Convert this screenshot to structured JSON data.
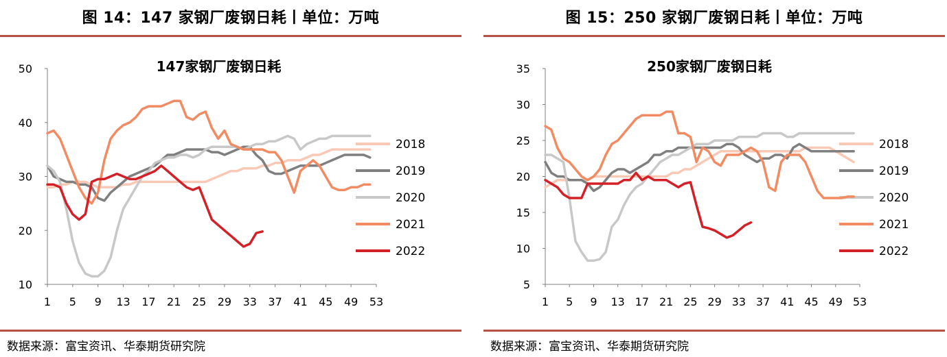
{
  "panels": [
    {
      "figure_title": "图 14：147 家钢厂废钢日耗丨单位：万吨",
      "source": "数据来源：富宝资讯、华泰期货研究院"
    },
    {
      "figure_title": "图 15：250 家钢厂废钢日耗丨单位：万吨",
      "source": "数据来源：富宝资讯、华泰期货研究院"
    }
  ],
  "colors": {
    "2018": "#f9c9b6",
    "2019": "#7f7f7f",
    "2020": "#c8c8c8",
    "2021": "#f28b62",
    "2022": "#d42027",
    "rule": "#b8504a"
  },
  "chart_data": [
    {
      "type": "line",
      "title": "147家钢厂废钢日耗",
      "xlabel": "",
      "ylabel": "",
      "x_ticks": [
        1,
        5,
        9,
        13,
        17,
        21,
        25,
        29,
        33,
        37,
        41,
        45,
        49,
        53
      ],
      "y_ticks": [
        10,
        20,
        30,
        40,
        50
      ],
      "xlim": [
        1,
        53
      ],
      "ylim": [
        10,
        50
      ],
      "grid": false,
      "legend_position": "right",
      "series": [
        {
          "name": "2018",
          "values": [
            28,
            28,
            28.5,
            28.5,
            29,
            29,
            29,
            28.5,
            28,
            28,
            28,
            28,
            28.5,
            28.5,
            29,
            29,
            29,
            29,
            29,
            29,
            29,
            29,
            29,
            29,
            29,
            29,
            29.5,
            30,
            30.5,
            31,
            31,
            31.5,
            31.5,
            31.5,
            32,
            32,
            32.5,
            32.5,
            33,
            33,
            33,
            33.5,
            34,
            34,
            34.5,
            35,
            35,
            35,
            35,
            35,
            35,
            35
          ]
        },
        {
          "name": "2019",
          "values": [
            32,
            30,
            29.5,
            29,
            29,
            28.5,
            28.5,
            28,
            26,
            25.5,
            27,
            28,
            29,
            30,
            30.5,
            31,
            31.5,
            32,
            33,
            34,
            34,
            34.5,
            35,
            35,
            35,
            35,
            34.5,
            34.5,
            34,
            34.5,
            35,
            35.5,
            35.5,
            34,
            33,
            31,
            30.5,
            30.5,
            31,
            31.5,
            32,
            32,
            32,
            32,
            32.5,
            33,
            33.5,
            34,
            34,
            34,
            34,
            33.5
          ]
        },
        {
          "name": "2020",
          "values": [
            32,
            31,
            29,
            24,
            18,
            14,
            12,
            11.5,
            11.5,
            12.5,
            15,
            20,
            24,
            26,
            28,
            30,
            31,
            32.5,
            33,
            33.5,
            33.5,
            34,
            34,
            33.5,
            34,
            35,
            35.5,
            35.5,
            35.5,
            35.5,
            35.5,
            35,
            35.5,
            36,
            36,
            36.5,
            36.5,
            37,
            37.5,
            37,
            35,
            36,
            36.5,
            37,
            37,
            37.5,
            37.5,
            37.5,
            37.5,
            37.5,
            37.5,
            37.5
          ]
        },
        {
          "name": "2021",
          "values": [
            38,
            38.5,
            37,
            34,
            31,
            28,
            26,
            25,
            27,
            33,
            37,
            38.5,
            39.5,
            40,
            41,
            42.5,
            43,
            43,
            43,
            43.5,
            44,
            44,
            41,
            40.5,
            41.5,
            42,
            39,
            37,
            38.5,
            36,
            35.5,
            35,
            35,
            35,
            35,
            34.5,
            34.5,
            33,
            30,
            27,
            31,
            32,
            33,
            32,
            30,
            28,
            27.5,
            27.5,
            28,
            28,
            28.5,
            28.5
          ]
        },
        {
          "name": "2022",
          "values": [
            28.5,
            28.5,
            28,
            25,
            23,
            22,
            23,
            29,
            29.5,
            29.5,
            30,
            30.5,
            30,
            29.5,
            29.5,
            30,
            30.5,
            31,
            32,
            31,
            30,
            29,
            28,
            27.5,
            28,
            25,
            22,
            21,
            20,
            19,
            18,
            17,
            17.5,
            19.5,
            19.8
          ]
        }
      ]
    },
    {
      "type": "line",
      "title": "250家钢厂废钢日耗",
      "xlabel": "",
      "ylabel": "",
      "x_ticks": [
        1,
        5,
        9,
        13,
        17,
        21,
        25,
        29,
        33,
        37,
        41,
        45,
        49,
        53
      ],
      "y_ticks": [
        5,
        10,
        15,
        20,
        25,
        30,
        35
      ],
      "xlim": [
        1,
        53
      ],
      "ylim": [
        5,
        35
      ],
      "grid": false,
      "legend_position": "right",
      "series": [
        {
          "name": "2018",
          "values": [
            18.5,
            19,
            19.5,
            19.5,
            19.5,
            19.5,
            19.5,
            19.5,
            20,
            20,
            20,
            20,
            20,
            20,
            20,
            20,
            20,
            20,
            20,
            20,
            20,
            20.5,
            20.5,
            21,
            21,
            21.5,
            22,
            22.5,
            23,
            23.5,
            23.5,
            23.5,
            23.5,
            23.5,
            23.5,
            23.5,
            23.5,
            23.5,
            23.5,
            23.5,
            23.5,
            23.5,
            23.5,
            24,
            24,
            24,
            24,
            24,
            23.5,
            23,
            22.5,
            22
          ]
        },
        {
          "name": "2019",
          "values": [
            22,
            20.5,
            20,
            20,
            19.5,
            19.5,
            19.5,
            19,
            18,
            18.5,
            19.5,
            20.5,
            21,
            21,
            20.5,
            21,
            21.5,
            22,
            23,
            23,
            23.5,
            23.5,
            24,
            24,
            24,
            24,
            24,
            24,
            24,
            24,
            24.5,
            24.5,
            24,
            23,
            22.5,
            22,
            22.5,
            22.5,
            23,
            23,
            22.5,
            24,
            24.5,
            24,
            23.5,
            23.5,
            23.5,
            23.5,
            23.5,
            23.5,
            23.5,
            23.5
          ]
        },
        {
          "name": "2020",
          "values": [
            23,
            23,
            22.5,
            22,
            17,
            11,
            9.5,
            8.3,
            8.3,
            8.5,
            9.5,
            13,
            14,
            16,
            17.5,
            18.5,
            19,
            20,
            21,
            22,
            22.5,
            23,
            23,
            23.5,
            24,
            24.5,
            24.5,
            24.5,
            25,
            25,
            25,
            25,
            25.5,
            25.5,
            25.5,
            25.5,
            26,
            26,
            26,
            26,
            25.5,
            25.5,
            26,
            26,
            26,
            26,
            26,
            26,
            26,
            26,
            26,
            26
          ]
        },
        {
          "name": "2021",
          "values": [
            27,
            26.5,
            24,
            22.5,
            22,
            21,
            20,
            19.5,
            20,
            21,
            23,
            24.5,
            25,
            26,
            27,
            28,
            28.5,
            28.5,
            28.5,
            28.5,
            29,
            29,
            26,
            26,
            25.5,
            22,
            24,
            23.5,
            22,
            21.5,
            23,
            23,
            23,
            23.5,
            24,
            23.5,
            22,
            18.5,
            18,
            22,
            23,
            23,
            23,
            22,
            20,
            18,
            17,
            17,
            17,
            17,
            17.2,
            17.2
          ]
        },
        {
          "name": "2022",
          "values": [
            19.5,
            19,
            18.5,
            17.5,
            17,
            17,
            17,
            19,
            19,
            19,
            19,
            19,
            19,
            19.5,
            19.5,
            20.5,
            19.5,
            20,
            19.5,
            19.5,
            19.5,
            19,
            18.5,
            19,
            19.2,
            16,
            13,
            12.8,
            12.5,
            12,
            11.5,
            11.8,
            12.5,
            13.2,
            13.6
          ]
        }
      ]
    }
  ]
}
